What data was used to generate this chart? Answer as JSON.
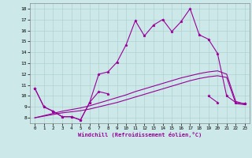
{
  "xlabel": "Windchill (Refroidissement éolien,°C)",
  "xlim": [
    -0.5,
    23.5
  ],
  "ylim": [
    7.5,
    18.5
  ],
  "yticks": [
    8,
    9,
    10,
    11,
    12,
    13,
    14,
    15,
    16,
    17,
    18
  ],
  "xticks": [
    0,
    1,
    2,
    3,
    4,
    5,
    6,
    7,
    8,
    9,
    10,
    11,
    12,
    13,
    14,
    15,
    16,
    17,
    18,
    19,
    20,
    21,
    22,
    23
  ],
  "background_color": "#cce8e8",
  "line_color": "#990099",
  "grid_color": "#aacccc",
  "x": [
    0,
    1,
    2,
    3,
    4,
    5,
    6,
    7,
    8,
    9,
    10,
    11,
    12,
    13,
    14,
    15,
    16,
    17,
    18,
    19,
    20,
    21,
    22,
    23
  ],
  "line_main": [
    10.7,
    9.0,
    8.6,
    8.1,
    8.1,
    7.8,
    9.4,
    12.0,
    12.2,
    13.1,
    14.7,
    16.9,
    15.5,
    16.5,
    17.0,
    15.9,
    16.8,
    18.0,
    15.6,
    15.2,
    13.9,
    10.0,
    9.4,
    9.3
  ],
  "line_lower": [
    10.7,
    9.0,
    8.6,
    8.1,
    8.1,
    7.8,
    9.4,
    10.4,
    10.2,
    null,
    null,
    null,
    null,
    null,
    null,
    null,
    null,
    null,
    null,
    10.0,
    9.4,
    null,
    null,
    9.3
  ],
  "line_band1": [
    8.0,
    8.15,
    8.3,
    8.45,
    8.55,
    8.65,
    8.8,
    9.0,
    9.2,
    9.4,
    9.65,
    9.9,
    10.15,
    10.4,
    10.65,
    10.9,
    11.15,
    11.4,
    11.6,
    11.75,
    11.85,
    11.7,
    9.3,
    9.2
  ],
  "line_band2": [
    8.0,
    8.2,
    8.4,
    8.6,
    8.75,
    8.9,
    9.1,
    9.35,
    9.6,
    9.85,
    10.1,
    10.4,
    10.65,
    10.9,
    11.15,
    11.4,
    11.65,
    11.85,
    12.05,
    12.2,
    12.3,
    12.0,
    9.5,
    9.25
  ]
}
